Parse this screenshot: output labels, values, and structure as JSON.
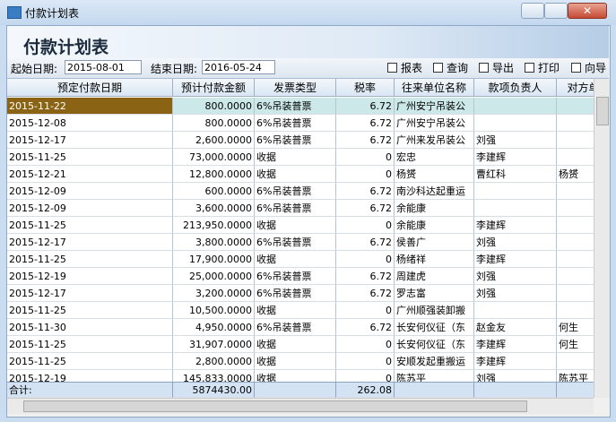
{
  "window": {
    "title": "付款计划表"
  },
  "header": {
    "title": "付款计划表"
  },
  "filters": {
    "start_label": "起始日期:",
    "start_value": "2015-08-01",
    "end_label": "结束日期:",
    "end_value": "2016-05-24"
  },
  "toolbar": [
    "报表",
    "查询",
    "导出",
    "打印",
    "向导"
  ],
  "table": {
    "columns": [
      "预定付款日期",
      "预计付款金额",
      "发票类型",
      "税率",
      "往来单位名称",
      "款项负责人",
      "对方单"
    ],
    "rows": [
      [
        "2015-11-22",
        "800.0000",
        "6%吊装普票",
        "6.72",
        "广州安宁吊装公",
        null,
        null
      ],
      [
        "2015-12-08",
        "800.0000",
        "6%吊装普票",
        "6.72",
        "广州安宁吊装公",
        null,
        null
      ],
      [
        "2015-12-17",
        "2,600.0000",
        "6%吊装普票",
        "6.72",
        "广州来发吊装公",
        "刘强",
        null
      ],
      [
        "2015-11-25",
        "73,000.0000",
        "收据",
        "0",
        "宏忠",
        "李建辉",
        null
      ],
      [
        "2015-12-21",
        "12,800.0000",
        "收据",
        "0",
        "杨赟",
        "曹红科",
        "杨赟"
      ],
      [
        "2015-12-09",
        "600.0000",
        "6%吊装普票",
        "6.72",
        "南沙科达起重运",
        null,
        null
      ],
      [
        "2015-12-09",
        "3,600.0000",
        "6%吊装普票",
        "6.72",
        "余能康",
        null,
        null
      ],
      [
        "2015-11-25",
        "213,950.0000",
        "收据",
        "0",
        "余能康",
        "李建辉",
        null
      ],
      [
        "2015-12-17",
        "3,800.0000",
        "6%吊装普票",
        "6.72",
        "侯善广",
        "刘强",
        null
      ],
      [
        "2015-11-25",
        "17,900.0000",
        "收据",
        "0",
        "杨绪祥",
        "李建辉",
        null
      ],
      [
        "2015-12-19",
        "25,000.0000",
        "6%吊装普票",
        "6.72",
        "周建虎",
        "刘强",
        null
      ],
      [
        "2015-12-17",
        "3,200.0000",
        "6%吊装普票",
        "6.72",
        "罗志富",
        "刘强",
        null
      ],
      [
        "2015-11-25",
        "10,500.0000",
        "收据",
        "0",
        "广州顺强装卸搬",
        null,
        null
      ],
      [
        "2015-11-30",
        "4,950.0000",
        "6%吊装普票",
        "6.72",
        "长安何仪征（东",
        "赵金友",
        "何生"
      ],
      [
        "2015-11-25",
        "31,907.0000",
        "收据",
        "0",
        "长安何仪征（东",
        "李建辉",
        "何生"
      ],
      [
        "2015-11-25",
        "2,800.0000",
        "收据",
        "0",
        "安顺发起重搬运",
        "李建辉",
        null
      ],
      [
        "2015-12-19",
        "145,833.0000",
        "收据",
        "0",
        "陈苏平",
        "刘强",
        "陈苏平"
      ]
    ],
    "total": {
      "label": "合计:",
      "amount": "5874430.00",
      "tax_rate": "262.08"
    }
  }
}
